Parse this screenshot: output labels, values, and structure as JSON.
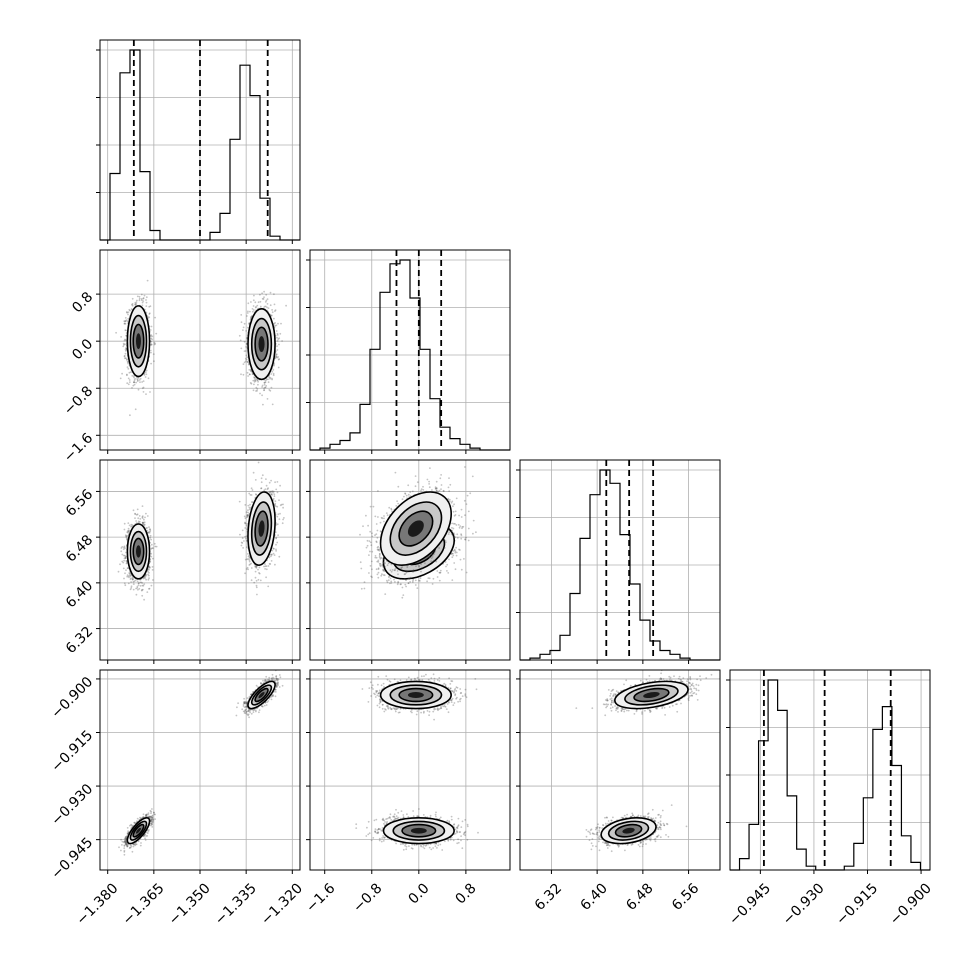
{
  "chart_data": {
    "type": "corner",
    "title": "",
    "colors": {
      "line": "#000000",
      "grid": "#b0b0b0",
      "fill_dark": "#1a1a1a",
      "fill_mid": "#777777",
      "fill_light": "#f0f0f0",
      "points": "#555555"
    },
    "grid": true,
    "contour_levels": [
      0.39,
      0.86,
      0.99
    ],
    "parameters": [
      {
        "index": 0,
        "range": [
          -1.3825,
          -1.3175
        ],
        "ticks": [
          -1.38,
          -1.365,
          -1.35,
          -1.335,
          -1.32
        ],
        "tick_labels": [
          "−1.380",
          "−1.365",
          "−1.350",
          "−1.335",
          "−1.320"
        ],
        "quantiles": [
          -1.3715,
          -1.35,
          -1.328
        ],
        "hist": [
          0,
          0.35,
          0.88,
          1.0,
          0.36,
          0.05,
          0,
          0,
          0,
          0,
          0,
          0.04,
          0.14,
          0.53,
          0.92,
          0.76,
          0.22,
          0.02,
          0,
          0
        ]
      },
      {
        "index": 1,
        "range": [
          -1.85,
          1.55
        ],
        "ticks": [
          -1.6,
          -0.8,
          0.0,
          0.8
        ],
        "tick_labels": [
          "−1.6",
          "−0.8",
          "0.0",
          "0.8"
        ],
        "quantiles": [
          -0.38,
          0.0,
          0.38
        ],
        "hist": [
          0,
          0.01,
          0.03,
          0.05,
          0.09,
          0.24,
          0.53,
          0.83,
          0.98,
          1.0,
          0.8,
          0.53,
          0.27,
          0.12,
          0.06,
          0.03,
          0.01,
          0,
          0,
          0
        ]
      },
      {
        "index": 2,
        "range": [
          6.265,
          6.615
        ],
        "ticks": [
          6.32,
          6.4,
          6.48,
          6.56
        ],
        "tick_labels": [
          "6.32",
          "6.40",
          "6.48",
          "6.56"
        ],
        "quantiles": [
          6.416,
          6.456,
          6.498
        ],
        "hist": [
          0,
          0.01,
          0.03,
          0.05,
          0.13,
          0.35,
          0.64,
          0.87,
          1.0,
          0.93,
          0.66,
          0.4,
          0.21,
          0.1,
          0.05,
          0.03,
          0.01,
          0,
          0,
          0
        ]
      },
      {
        "index": 3,
        "range": [
          -0.9535,
          -0.8975
        ],
        "ticks": [
          -0.945,
          -0.93,
          -0.915,
          -0.9
        ],
        "tick_labels": [
          "−0.945",
          "−0.930",
          "−0.915",
          "−0.900"
        ],
        "quantiles": [
          -0.944,
          -0.927,
          -0.9085
        ],
        "hist": [
          0,
          0.06,
          0.24,
          0.68,
          1.0,
          0.84,
          0.39,
          0.11,
          0.02,
          0,
          0,
          0,
          0.02,
          0.14,
          0.38,
          0.74,
          0.86,
          0.55,
          0.18,
          0.04,
          0
        ]
      }
    ],
    "modes": [
      {
        "center": [
          -1.37,
          0.0,
          6.455,
          -0.9425
        ],
        "sd": [
          0.0018,
          0.3,
          0.024,
          0.0018
        ],
        "rho": {
          "0-3": 0.75,
          "1-2": 0.4,
          "2-3": 0.3
        }
      },
      {
        "center": [
          -1.33,
          -0.05,
          6.495,
          -0.9045
        ],
        "sd": [
          0.0022,
          0.3,
          0.032,
          0.0019
        ],
        "rho": {
          "0-3": 0.75,
          "0-2": 0.2,
          "1-2": 0.4,
          "2-3": 0.4
        }
      }
    ]
  }
}
